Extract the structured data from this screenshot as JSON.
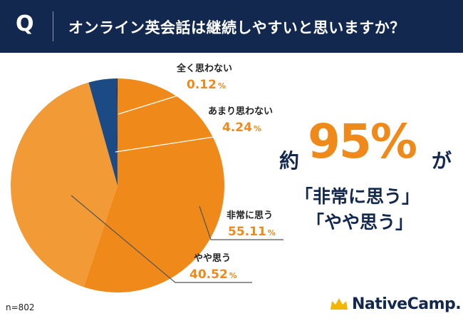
{
  "header": {
    "q_mark": "Q",
    "question": "オンライン英会話は継続しやすいと思いますか？"
  },
  "chart_data": {
    "type": "pie",
    "title": "オンライン英会話は継続しやすいと思いますか？",
    "start": "12 o'clock, clockwise",
    "slices": [
      {
        "label": "非常に思う",
        "value": 55.11,
        "display": "55.11",
        "color": "#ef8a1a"
      },
      {
        "label": "やや思う",
        "value": 40.52,
        "display": "40.52",
        "color": "#f29a35"
      },
      {
        "label": "あまり思わない",
        "value": 4.24,
        "display": "4.24",
        "color": "#1b4a84"
      },
      {
        "label": "全く思わない",
        "value": 0.12,
        "display": "0.12",
        "color": "#13284f"
      }
    ],
    "percent_sign": "%",
    "sample_size": "n=802"
  },
  "headline": {
    "prefix": "約",
    "big": "95%",
    "suffix": "が",
    "line1": "「非常に思う」",
    "line2": "「やや思う」"
  },
  "brand": {
    "name": "NativeCamp.",
    "crown_color": "#f2b705"
  }
}
